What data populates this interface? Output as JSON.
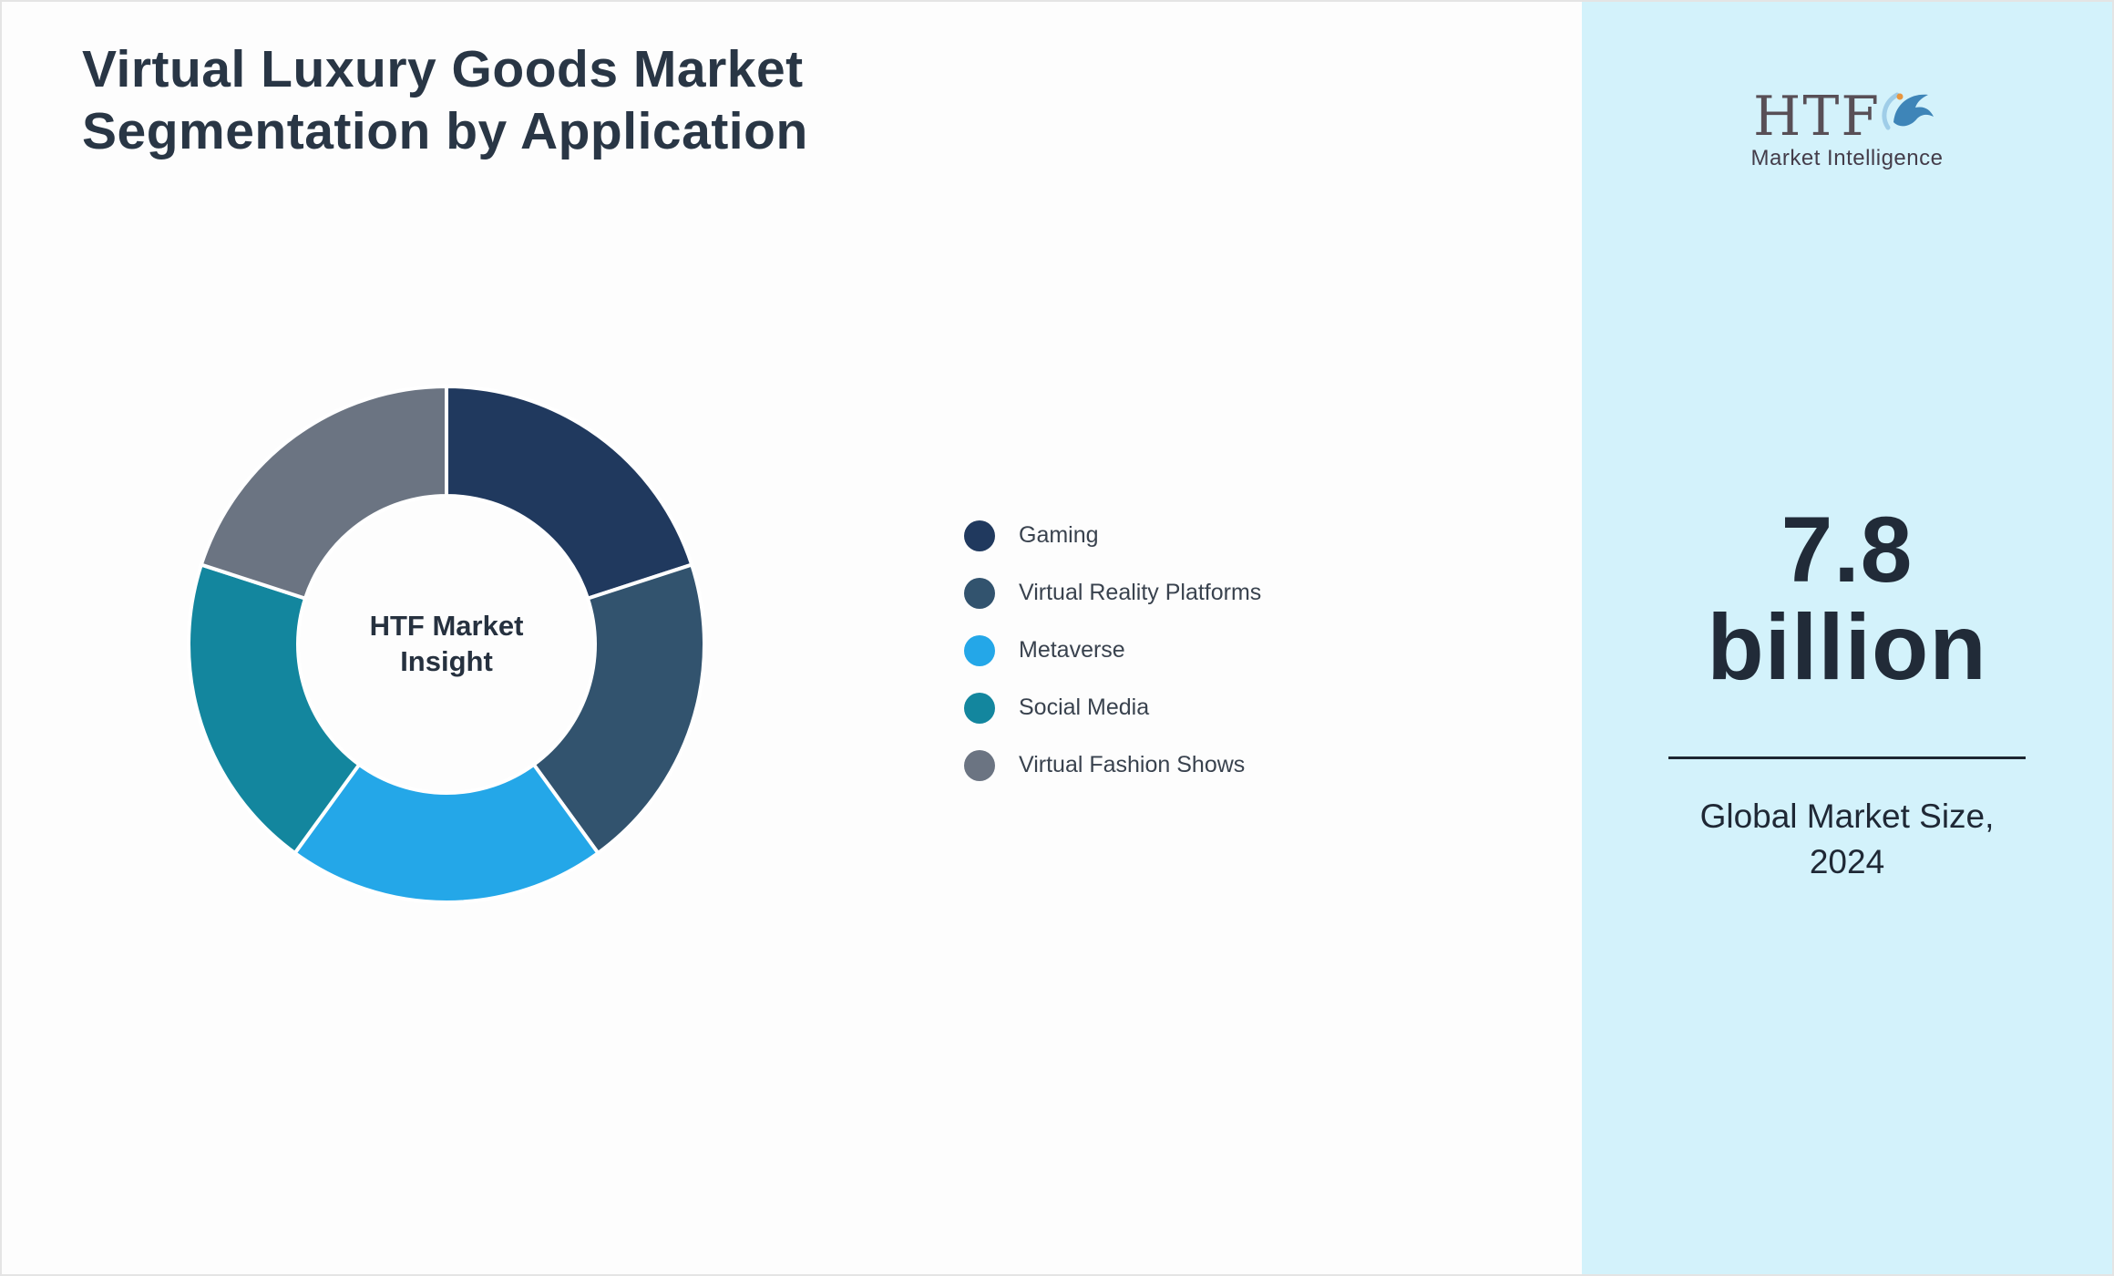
{
  "title": {
    "line1": "Virtual Luxury Goods Market",
    "line2": "Segmentation by Application"
  },
  "chart_data": {
    "type": "pie",
    "subtype": "donut",
    "title": "Virtual Luxury Goods Market Segmentation by Application",
    "labels": [
      "Gaming",
      "Virtual Reality Platforms",
      "Metaverse",
      "Social Media",
      "Virtual Fashion Shows"
    ],
    "values": [
      20,
      20,
      20,
      20,
      20
    ],
    "unit": "percent",
    "colors": [
      "#20395e",
      "#32536e",
      "#24a7e8",
      "#13869e",
      "#6b7482"
    ],
    "center_label": "HTF Market Insight",
    "legend_position": "right",
    "start_angle_deg": 0,
    "direction": "clockwise"
  },
  "sidebar": {
    "background": "#d3f2fb",
    "logo": {
      "text": "HTF",
      "subtext": "Market Intelligence"
    },
    "stat": {
      "value_line1": "7.8",
      "value_line2": "billion",
      "label_line1": "Global Market Size,",
      "label_line2": "2024"
    }
  }
}
